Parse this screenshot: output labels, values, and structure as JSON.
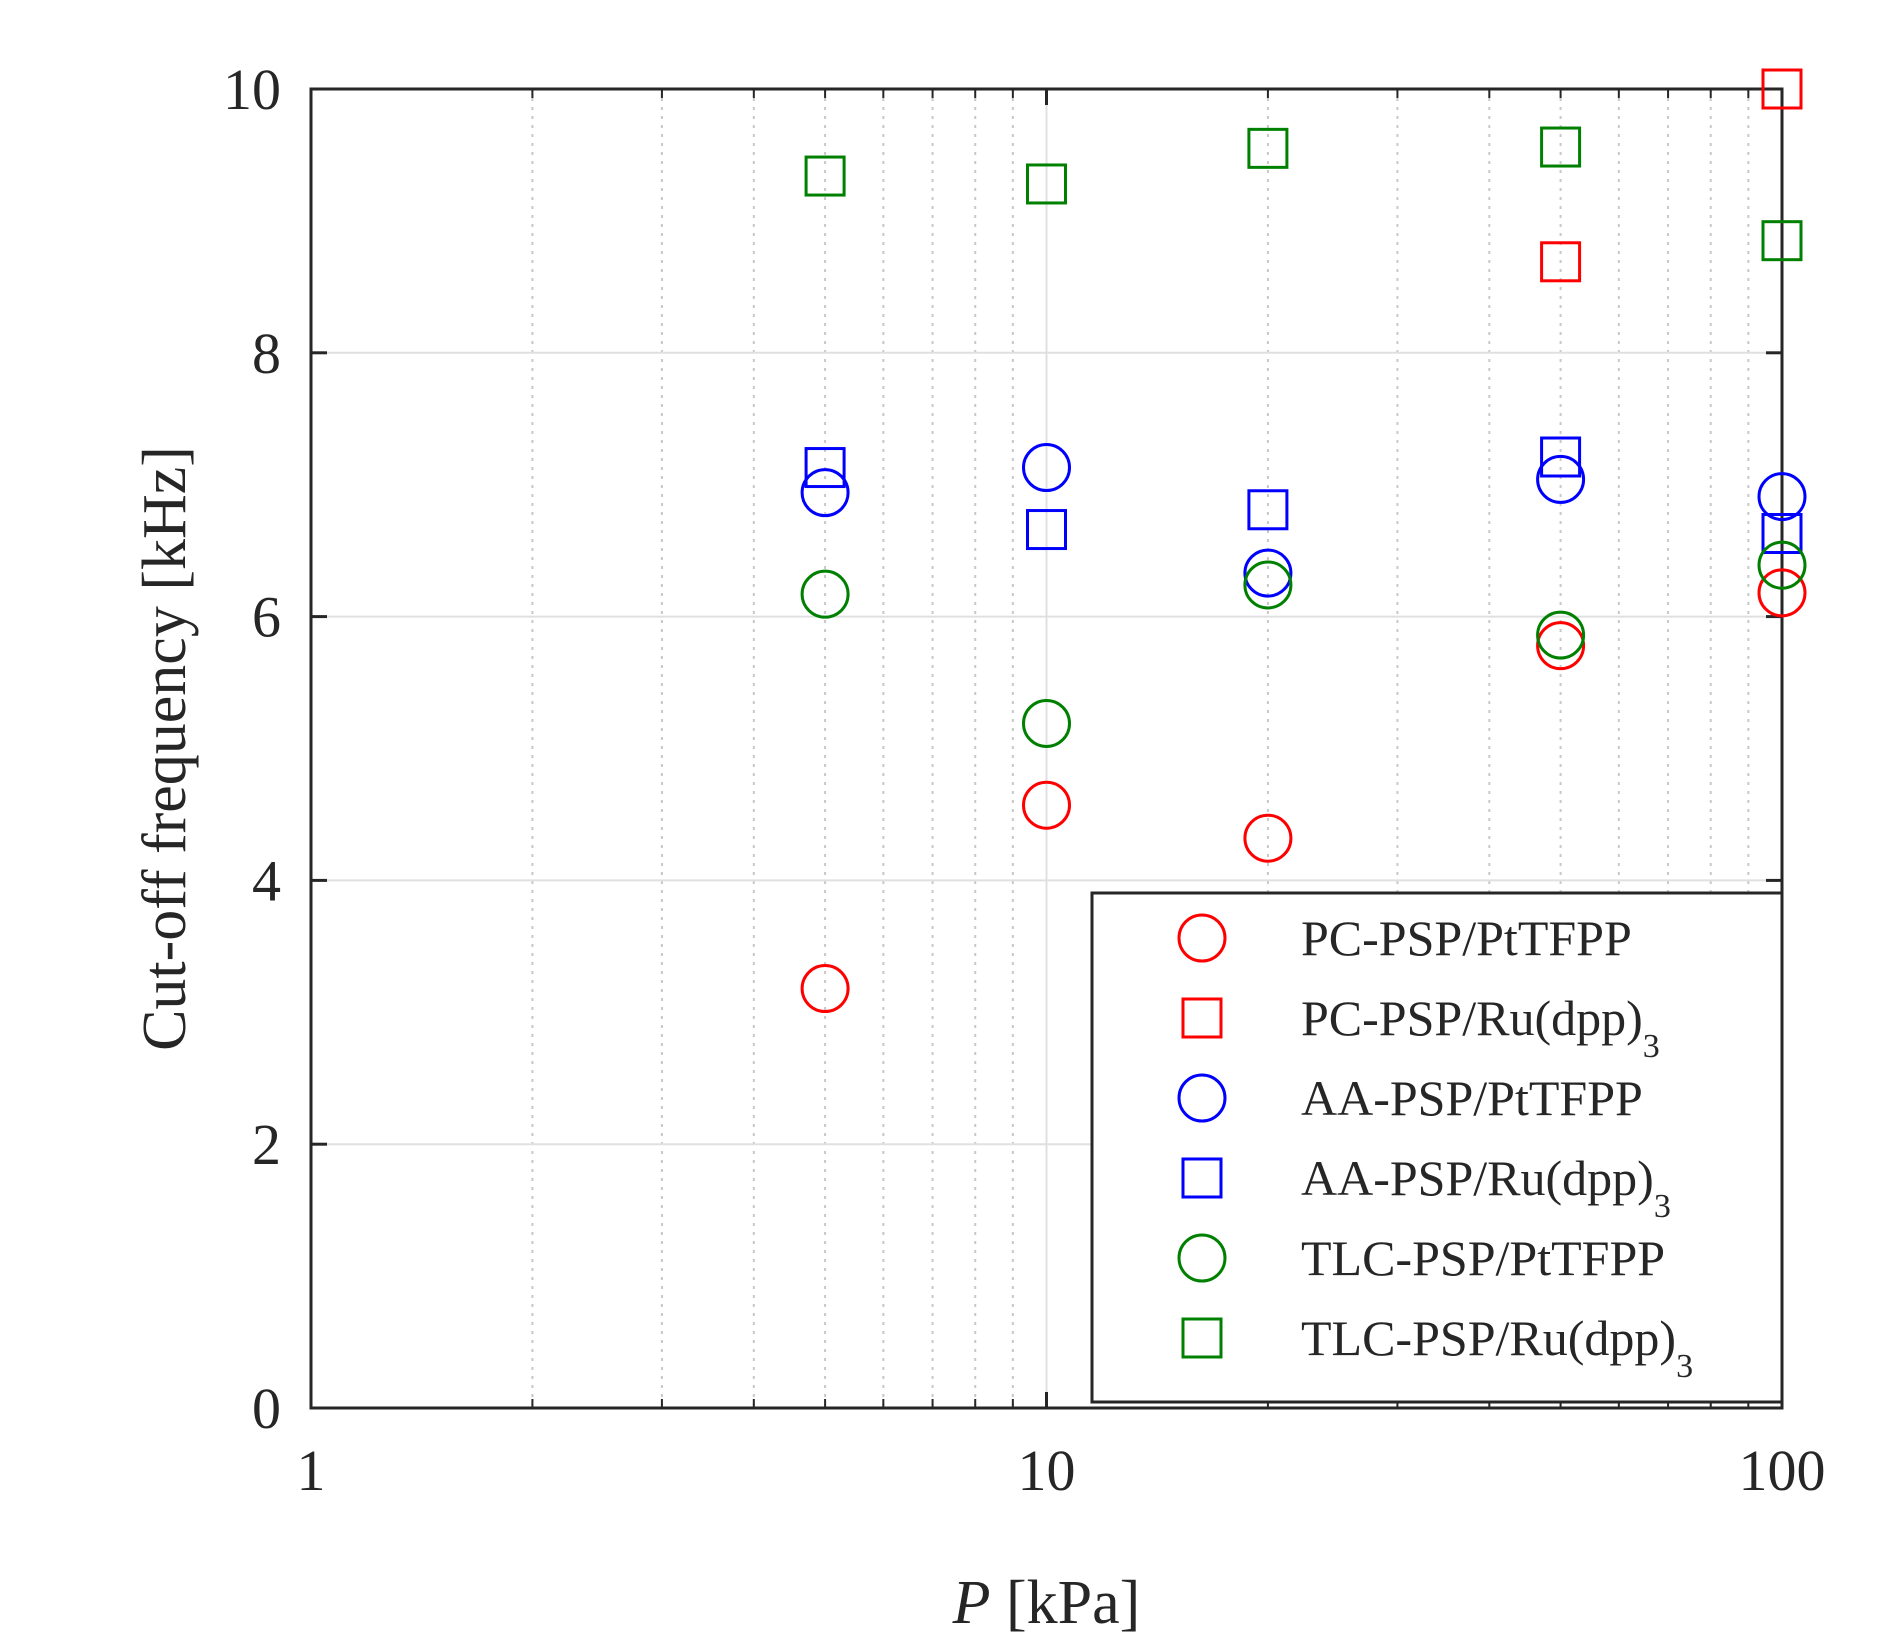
{
  "chart_data": {
    "type": "scatter",
    "xscale": "log",
    "xlim": [
      1,
      100
    ],
    "ylim": [
      0,
      10
    ],
    "xticks": [
      1,
      10,
      100
    ],
    "xtick_labels": [
      "1",
      "10",
      "100"
    ],
    "yticks": [
      0,
      2,
      4,
      6,
      8,
      10
    ],
    "ytick_labels": [
      "0",
      "2",
      "4",
      "6",
      "8",
      "10"
    ],
    "xlabel": {
      "symbol": "P",
      "unit": " [kPa]"
    },
    "ylabel": "Cut-off frequency [kHz]",
    "grid": true,
    "legend_position": "bottom-right",
    "series": [
      {
        "name": "PC-PSP/PtTFPP",
        "label": "PC-PSP/PtTFPP",
        "subscript": "",
        "marker": "circle",
        "color": "#ff0000",
        "x": [
          5,
          10,
          20,
          50,
          100
        ],
        "y": [
          3.18,
          4.57,
          4.32,
          5.78,
          6.18
        ]
      },
      {
        "name": "PC-PSP/Ru(dpp)3",
        "label": "PC-PSP/Ru(dpp)",
        "subscript": "3",
        "marker": "square",
        "color": "#ff0000",
        "x": [
          50,
          100
        ],
        "y": [
          8.69,
          10.0
        ]
      },
      {
        "name": "AA-PSP/PtTFPP",
        "label": "AA-PSP/PtTFPP",
        "subscript": "",
        "marker": "circle",
        "color": "#0000ff",
        "x": [
          5,
          10,
          20,
          50,
          100
        ],
        "y": [
          6.94,
          7.13,
          6.33,
          7.04,
          6.91
        ]
      },
      {
        "name": "AA-PSP/Ru(dpp)3",
        "label": "AA-PSP/Ru(dpp)",
        "subscript": "3",
        "marker": "square",
        "color": "#0000ff",
        "x": [
          5,
          10,
          20,
          50,
          100
        ],
        "y": [
          7.13,
          6.66,
          6.81,
          7.21,
          6.63
        ]
      },
      {
        "name": "TLC-PSP/PtTFPP",
        "label": "TLC-PSP/PtTFPP",
        "subscript": "",
        "marker": "circle",
        "color": "#008000",
        "x": [
          5,
          10,
          20,
          50,
          100
        ],
        "y": [
          6.17,
          5.19,
          6.24,
          5.86,
          6.39
        ]
      },
      {
        "name": "TLC-PSP/Ru(dpp)3",
        "label": "TLC-PSP/Ru(dpp)",
        "subscript": "3",
        "marker": "square",
        "color": "#008000",
        "x": [
          5,
          10,
          20,
          50,
          100
        ],
        "y": [
          9.34,
          9.28,
          9.55,
          9.56,
          8.85
        ]
      }
    ]
  }
}
